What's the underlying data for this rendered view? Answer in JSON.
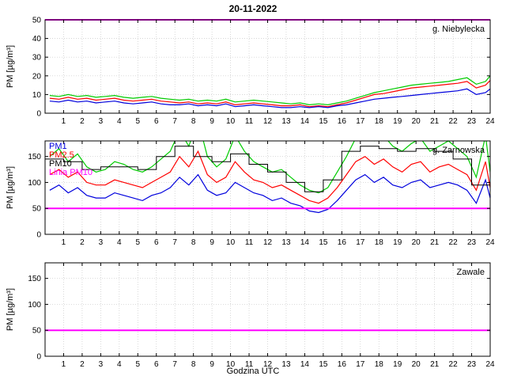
{
  "figure": {
    "title": "20-11-2022",
    "xlabel": "Godzina UTC",
    "ylabel": "PM [µg/m³]"
  },
  "colors": {
    "pm1": "#0000dd",
    "pm25": "#ff0000",
    "pm10": "#00cc00",
    "pm10_hourly": "#000000",
    "limit": "#ff00ff",
    "grid": "#c8c8c8",
    "frame": "#000000"
  },
  "chart_data": [
    {
      "type": "line",
      "station": "g. Niebylecka",
      "xlim": [
        0,
        24
      ],
      "ylim": [
        0,
        50
      ],
      "xticks": [
        1,
        2,
        3,
        4,
        5,
        6,
        7,
        8,
        9,
        10,
        11,
        12,
        13,
        14,
        15,
        16,
        17,
        18,
        19,
        20,
        21,
        22,
        23,
        24
      ],
      "yticks": [
        0,
        10,
        20,
        30,
        40,
        50
      ],
      "limit": 50,
      "x": [
        0.25,
        0.75,
        1.25,
        1.75,
        2.25,
        2.75,
        3.25,
        3.75,
        4.25,
        4.75,
        5.25,
        5.75,
        6.25,
        6.75,
        7.25,
        7.75,
        8.25,
        8.75,
        9.25,
        9.75,
        10.25,
        10.75,
        11.25,
        11.75,
        12.25,
        12.75,
        13.25,
        13.75,
        14.25,
        14.75,
        15.25,
        15.75,
        16.25,
        16.75,
        17.25,
        17.75,
        18.25,
        18.75,
        19.25,
        19.75,
        20.25,
        20.75,
        21.25,
        21.75,
        22.25,
        22.75,
        23.25,
        23.75,
        24
      ],
      "series": [
        {
          "name": "PM10",
          "color": "#00cc00",
          "values": [
            9.5,
            9,
            10,
            9,
            9.5,
            8.5,
            9,
            9.5,
            8.5,
            8,
            8.5,
            9,
            8,
            7.5,
            7,
            7.5,
            6.5,
            7,
            6.5,
            7.5,
            6,
            6.5,
            7,
            6.5,
            6,
            5.5,
            5,
            5.5,
            4.5,
            5,
            4.5,
            5.5,
            6.5,
            8,
            9.5,
            11,
            12,
            13,
            14,
            15,
            15.5,
            16,
            16.5,
            17,
            18,
            19,
            15.5,
            17,
            20
          ]
        },
        {
          "name": "PM2.5",
          "color": "#ff0000",
          "values": [
            8,
            7.5,
            8.5,
            7.5,
            8,
            7,
            7.5,
            8,
            7,
            6.5,
            7,
            7.5,
            6.5,
            6,
            5.5,
            6,
            5,
            5.5,
            5,
            6,
            4.5,
            5,
            5.5,
            5,
            4.5,
            4,
            4,
            4.5,
            3.5,
            4,
            3.5,
            4.5,
            5.5,
            7,
            8.5,
            10,
            10.5,
            11.5,
            12.5,
            13.5,
            14,
            14.5,
            15,
            15.5,
            16,
            17,
            13.5,
            15,
            17.5
          ]
        },
        {
          "name": "PM1",
          "color": "#0000dd",
          "values": [
            6.5,
            6,
            7,
            6,
            6.5,
            5.5,
            6,
            6.5,
            5.5,
            5,
            5.5,
            6,
            5,
            4.5,
            4.5,
            5,
            4,
            4.5,
            4,
            5,
            3.5,
            4,
            4.5,
            4,
            3.5,
            3,
            3,
            3.5,
            3,
            3.5,
            3,
            4,
            4.5,
            5.5,
            6.5,
            7.5,
            8,
            8.5,
            9,
            9.5,
            10,
            10.5,
            11,
            11.5,
            12,
            13,
            10,
            11,
            13
          ]
        }
      ]
    },
    {
      "type": "line",
      "station": "g. Zarnowska",
      "xlim": [
        0,
        24
      ],
      "ylim": [
        0,
        180
      ],
      "xticks": [
        1,
        2,
        3,
        4,
        5,
        6,
        7,
        8,
        9,
        10,
        11,
        12,
        13,
        14,
        15,
        16,
        17,
        18,
        19,
        20,
        21,
        22,
        23,
        24
      ],
      "yticks": [
        0,
        50,
        100,
        150
      ],
      "limit": 50,
      "x": [
        0.25,
        0.75,
        1.25,
        1.75,
        2.25,
        2.75,
        3.25,
        3.75,
        4.25,
        4.75,
        5.25,
        5.75,
        6.25,
        6.75,
        7.25,
        7.75,
        8.25,
        8.75,
        9.25,
        9.75,
        10.25,
        10.75,
        11.25,
        11.75,
        12.25,
        12.75,
        13.25,
        13.75,
        14.25,
        14.75,
        15.25,
        15.75,
        16.25,
        16.75,
        17.25,
        17.75,
        18.25,
        18.75,
        19.25,
        19.75,
        20.25,
        20.75,
        21.25,
        21.75,
        22.25,
        22.75,
        23.25,
        23.75,
        24
      ],
      "series": [
        {
          "name": "PM10",
          "color": "#00cc00",
          "values": [
            150,
            165,
            140,
            155,
            130,
            120,
            125,
            140,
            135,
            125,
            120,
            130,
            145,
            160,
            200,
            170,
            220,
            150,
            130,
            145,
            190,
            160,
            140,
            130,
            120,
            125,
            110,
            95,
            85,
            80,
            90,
            120,
            150,
            185,
            200,
            180,
            190,
            170,
            160,
            175,
            185,
            160,
            170,
            180,
            165,
            150,
            110,
            190,
            120
          ]
        },
        {
          "name": "PM2.5",
          "color": "#ff0000",
          "values": [
            115,
            125,
            110,
            120,
            100,
            95,
            95,
            105,
            100,
            95,
            90,
            100,
            110,
            120,
            150,
            130,
            160,
            115,
            100,
            110,
            140,
            120,
            105,
            100,
            90,
            95,
            85,
            75,
            65,
            60,
            70,
            90,
            115,
            140,
            150,
            135,
            145,
            130,
            120,
            135,
            140,
            120,
            130,
            135,
            125,
            115,
            85,
            140,
            90
          ]
        },
        {
          "name": "PM1",
          "color": "#0000dd",
          "values": [
            85,
            95,
            80,
            90,
            75,
            70,
            70,
            80,
            75,
            70,
            65,
            75,
            80,
            90,
            110,
            95,
            115,
            85,
            75,
            80,
            100,
            90,
            80,
            75,
            65,
            70,
            60,
            55,
            45,
            42,
            48,
            65,
            85,
            105,
            115,
            100,
            110,
            95,
            90,
            100,
            105,
            90,
            95,
            100,
            95,
            85,
            60,
            105,
            70
          ]
        }
      ],
      "step_series": {
        "name": "PM10 hourly mean",
        "color": "#000000",
        "values": [
          145,
          140,
          125,
          130,
          130,
          125,
          150,
          170,
          150,
          140,
          155,
          135,
          120,
          100,
          82,
          105,
          160,
          170,
          165,
          160,
          165,
          160,
          145,
          95
        ]
      },
      "legend": [
        {
          "label": "PM1",
          "color": "#0000dd"
        },
        {
          "label": "PM2.5",
          "color": "#ff0000"
        },
        {
          "label": "PM10",
          "color": "#000000"
        },
        {
          "label": "Linia PM10",
          "color": "#ff00ff"
        }
      ]
    },
    {
      "type": "line",
      "station": "Zawale",
      "xlim": [
        0,
        24
      ],
      "ylim": [
        0,
        180
      ],
      "xticks": [
        1,
        2,
        3,
        4,
        5,
        6,
        7,
        8,
        9,
        10,
        11,
        12,
        13,
        14,
        15,
        16,
        17,
        18,
        19,
        20,
        21,
        22,
        23,
        24
      ],
      "yticks": [
        0,
        50,
        100,
        150
      ],
      "limit": 50,
      "x": [],
      "series": []
    }
  ]
}
